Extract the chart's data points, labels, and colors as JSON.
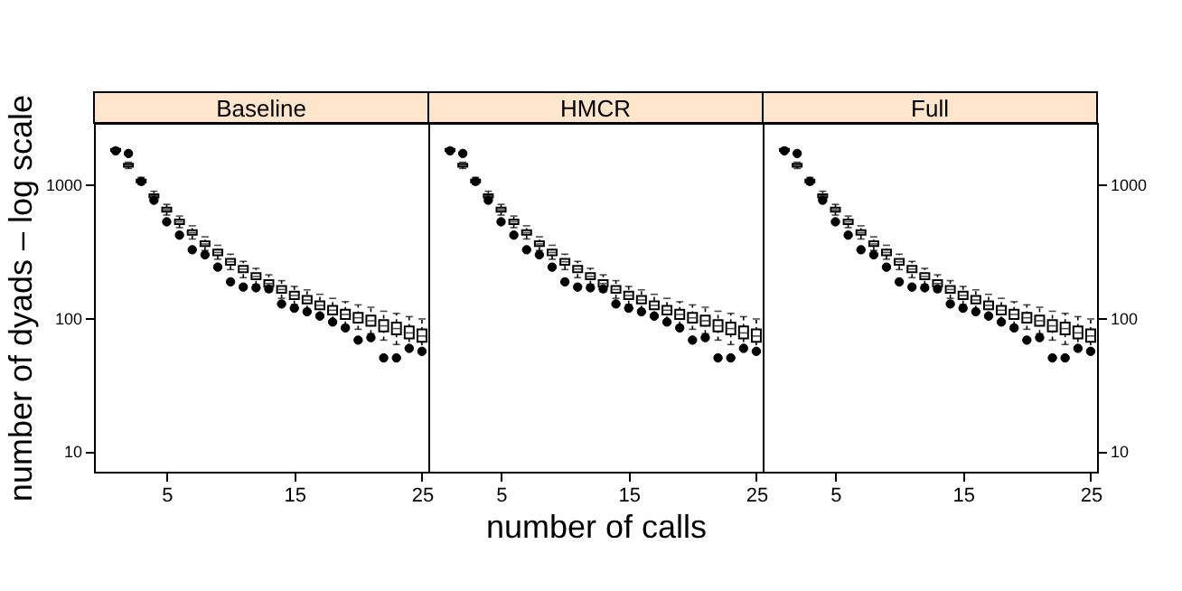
{
  "chart_data": [
    {
      "type": "box",
      "title": "Baseline",
      "ylabel": "number of dyads – log scale",
      "log": true,
      "grid": false,
      "xlim": [
        -0.7,
        25.5
      ],
      "xticks": [
        5,
        15,
        25
      ],
      "ylim": [
        7,
        2900
      ],
      "yticks": [
        10,
        100,
        1000
      ],
      "x": [
        1,
        2,
        3,
        4,
        5,
        6,
        7,
        8,
        9,
        10,
        11,
        12,
        13,
        14,
        15,
        16,
        17,
        18,
        19,
        20,
        21,
        22,
        23,
        24,
        25
      ],
      "series": [
        {
          "type": "box",
          "color": "#000000",
          "boxes": [
            {
              "low": 1750,
              "q1": 1790,
              "median": 1820,
              "q3": 1850,
              "high": 1880
            },
            {
              "low": 1320,
              "q1": 1360,
              "median": 1395,
              "q3": 1430,
              "high": 1470
            },
            {
              "low": 1000,
              "q1": 1040,
              "median": 1065,
              "q3": 1090,
              "high": 1130
            },
            {
              "low": 760,
              "q1": 800,
              "median": 822,
              "q3": 845,
              "high": 890
            },
            {
              "low": 590,
              "q1": 625,
              "median": 647,
              "q3": 670,
              "high": 710
            },
            {
              "low": 475,
              "q1": 505,
              "median": 525,
              "q3": 545,
              "high": 580
            },
            {
              "low": 390,
              "q1": 420,
              "median": 435,
              "q3": 455,
              "high": 490
            },
            {
              "low": 320,
              "q1": 345,
              "median": 358,
              "q3": 375,
              "high": 405
            },
            {
              "low": 275,
              "q1": 295,
              "median": 309,
              "q3": 325,
              "high": 350
            },
            {
              "low": 230,
              "q1": 250,
              "median": 263,
              "q3": 277,
              "high": 300
            },
            {
              "low": 200,
              "q1": 220,
              "median": 232,
              "q3": 245,
              "high": 265
            },
            {
              "low": 178,
              "q1": 195,
              "median": 204,
              "q3": 216,
              "high": 235
            },
            {
              "low": 157,
              "q1": 172,
              "median": 181,
              "q3": 192,
              "high": 210
            },
            {
              "low": 140,
              "q1": 154,
              "median": 163,
              "q3": 173,
              "high": 190
            },
            {
              "low": 126,
              "q1": 138,
              "median": 147,
              "q3": 157,
              "high": 172
            },
            {
              "low": 116,
              "q1": 128,
              "median": 136,
              "q3": 146,
              "high": 162
            },
            {
              "low": 105,
              "q1": 116,
              "median": 124,
              "q3": 133,
              "high": 150
            },
            {
              "low": 96,
              "q1": 106,
              "median": 114,
              "q3": 123,
              "high": 140
            },
            {
              "low": 88,
              "q1": 98,
              "median": 106,
              "q3": 115,
              "high": 132
            },
            {
              "low": 82,
              "q1": 92,
              "median": 100,
              "q3": 109,
              "high": 125
            },
            {
              "low": 76,
              "q1": 87,
              "median": 95,
              "q3": 104,
              "high": 120
            },
            {
              "low": 68,
              "q1": 79,
              "median": 87,
              "q3": 96,
              "high": 112
            },
            {
              "low": 63,
              "q1": 75,
              "median": 83,
              "q3": 92,
              "high": 108
            },
            {
              "low": 58,
              "q1": 70,
              "median": 77,
              "q3": 86,
              "high": 102
            },
            {
              "low": 55,
              "q1": 66,
              "median": 73,
              "q3": 82,
              "high": 98
            }
          ]
        },
        {
          "type": "scatter",
          "color": "#000000",
          "marker": "circle",
          "values": [
            1790,
            1710,
            1055,
            762,
            525,
            417,
            324,
            297,
            240,
            186,
            170,
            168,
            165,
            127,
            118,
            111,
            103,
            93,
            84,
            68,
            71,
            50,
            50,
            59,
            56
          ]
        }
      ]
    },
    {
      "type": "box",
      "title": "HMCR",
      "xlabel": "number of calls",
      "log": true,
      "grid": false,
      "tick_labels": "x",
      "xlim": [
        -0.7,
        25.5
      ],
      "xticks": [
        5,
        15,
        25
      ],
      "ylim": [
        7,
        2900
      ],
      "yticks": [
        10,
        100,
        1000
      ],
      "x": [
        1,
        2,
        3,
        4,
        5,
        6,
        7,
        8,
        9,
        10,
        11,
        12,
        13,
        14,
        15,
        16,
        17,
        18,
        19,
        20,
        21,
        22,
        23,
        24,
        25
      ],
      "series": [
        {
          "type": "box",
          "color": "#000000",
          "boxes": [
            {
              "low": 1760,
              "q1": 1790,
              "median": 1820,
              "q3": 1850,
              "high": 1880
            },
            {
              "low": 1320,
              "q1": 1360,
              "median": 1395,
              "q3": 1430,
              "high": 1470
            },
            {
              "low": 1000,
              "q1": 1040,
              "median": 1065,
              "q3": 1090,
              "high": 1130
            },
            {
              "low": 760,
              "q1": 800,
              "median": 822,
              "q3": 845,
              "high": 890
            },
            {
              "low": 590,
              "q1": 625,
              "median": 647,
              "q3": 670,
              "high": 710
            },
            {
              "low": 475,
              "q1": 505,
              "median": 525,
              "q3": 545,
              "high": 580
            },
            {
              "low": 390,
              "q1": 420,
              "median": 435,
              "q3": 455,
              "high": 490
            },
            {
              "low": 320,
              "q1": 345,
              "median": 358,
              "q3": 375,
              "high": 405
            },
            {
              "low": 275,
              "q1": 295,
              "median": 309,
              "q3": 325,
              "high": 350
            },
            {
              "low": 230,
              "q1": 250,
              "median": 263,
              "q3": 277,
              "high": 300
            },
            {
              "low": 200,
              "q1": 220,
              "median": 232,
              "q3": 245,
              "high": 265
            },
            {
              "low": 178,
              "q1": 195,
              "median": 204,
              "q3": 216,
              "high": 235
            },
            {
              "low": 157,
              "q1": 172,
              "median": 181,
              "q3": 192,
              "high": 210
            },
            {
              "low": 140,
              "q1": 154,
              "median": 163,
              "q3": 173,
              "high": 190
            },
            {
              "low": 126,
              "q1": 138,
              "median": 147,
              "q3": 157,
              "high": 172
            },
            {
              "low": 116,
              "q1": 128,
              "median": 136,
              "q3": 146,
              "high": 162
            },
            {
              "low": 105,
              "q1": 116,
              "median": 124,
              "q3": 133,
              "high": 150
            },
            {
              "low": 96,
              "q1": 106,
              "median": 114,
              "q3": 123,
              "high": 140
            },
            {
              "low": 88,
              "q1": 98,
              "median": 106,
              "q3": 115,
              "high": 132
            },
            {
              "low": 82,
              "q1": 92,
              "median": 100,
              "q3": 109,
              "high": 125
            },
            {
              "low": 76,
              "q1": 87,
              "median": 95,
              "q3": 104,
              "high": 120
            },
            {
              "low": 68,
              "q1": 79,
              "median": 87,
              "q3": 96,
              "high": 112
            },
            {
              "low": 63,
              "q1": 75,
              "median": 83,
              "q3": 92,
              "high": 108
            },
            {
              "low": 58,
              "q1": 70,
              "median": 77,
              "q3": 86,
              "high": 102
            },
            {
              "low": 55,
              "q1": 66,
              "median": 73,
              "q3": 82,
              "high": 98
            }
          ]
        },
        {
          "type": "scatter",
          "color": "#000000",
          "marker": "circle",
          "values": [
            1790,
            1710,
            1055,
            762,
            525,
            417,
            324,
            297,
            240,
            186,
            170,
            168,
            165,
            127,
            118,
            111,
            103,
            93,
            84,
            68,
            71,
            50,
            50,
            59,
            56
          ]
        }
      ]
    },
    {
      "type": "box",
      "title": "Full",
      "log": true,
      "grid": false,
      "xlim": [
        -0.7,
        25.5
      ],
      "xticks": [
        5,
        15,
        25
      ],
      "ylim": [
        7,
        2900
      ],
      "yticks": [
        10,
        100,
        1000
      ],
      "x": [
        1,
        2,
        3,
        4,
        5,
        6,
        7,
        8,
        9,
        10,
        11,
        12,
        13,
        14,
        15,
        16,
        17,
        18,
        19,
        20,
        21,
        22,
        23,
        24,
        25
      ],
      "series": [
        {
          "type": "box",
          "color": "#000000",
          "boxes": [
            {
              "low": 1760,
              "q1": 1790,
              "median": 1820,
              "q3": 1850,
              "high": 1880
            },
            {
              "low": 1320,
              "q1": 1360,
              "median": 1395,
              "q3": 1430,
              "high": 1470
            },
            {
              "low": 1000,
              "q1": 1040,
              "median": 1065,
              "q3": 1090,
              "high": 1130
            },
            {
              "low": 760,
              "q1": 800,
              "median": 822,
              "q3": 845,
              "high": 890
            },
            {
              "low": 590,
              "q1": 625,
              "median": 647,
              "q3": 670,
              "high": 710
            },
            {
              "low": 475,
              "q1": 505,
              "median": 525,
              "q3": 545,
              "high": 580
            },
            {
              "low": 390,
              "q1": 420,
              "median": 435,
              "q3": 455,
              "high": 490
            },
            {
              "low": 320,
              "q1": 345,
              "median": 358,
              "q3": 375,
              "high": 405
            },
            {
              "low": 275,
              "q1": 295,
              "median": 309,
              "q3": 325,
              "high": 350
            },
            {
              "low": 230,
              "q1": 250,
              "median": 263,
              "q3": 277,
              "high": 300
            },
            {
              "low": 200,
              "q1": 220,
              "median": 232,
              "q3": 245,
              "high": 265
            },
            {
              "low": 178,
              "q1": 195,
              "median": 204,
              "q3": 216,
              "high": 235
            },
            {
              "low": 157,
              "q1": 172,
              "median": 181,
              "q3": 192,
              "high": 210
            },
            {
              "low": 140,
              "q1": 154,
              "median": 163,
              "q3": 173,
              "high": 190
            },
            {
              "low": 126,
              "q1": 138,
              "median": 147,
              "q3": 157,
              "high": 172
            },
            {
              "low": 116,
              "q1": 128,
              "median": 136,
              "q3": 146,
              "high": 162
            },
            {
              "low": 105,
              "q1": 116,
              "median": 124,
              "q3": 133,
              "high": 150
            },
            {
              "low": 96,
              "q1": 106,
              "median": 114,
              "q3": 123,
              "high": 140
            },
            {
              "low": 88,
              "q1": 98,
              "median": 106,
              "q3": 115,
              "high": 132
            },
            {
              "low": 82,
              "q1": 92,
              "median": 100,
              "q3": 109,
              "high": 125
            },
            {
              "low": 76,
              "q1": 87,
              "median": 95,
              "q3": 104,
              "high": 120
            },
            {
              "low": 68,
              "q1": 79,
              "median": 87,
              "q3": 96,
              "high": 112
            },
            {
              "low": 63,
              "q1": 75,
              "median": 83,
              "q3": 92,
              "high": 108
            },
            {
              "low": 58,
              "q1": 70,
              "median": 77,
              "q3": 86,
              "high": 102
            },
            {
              "low": 55,
              "q1": 66,
              "median": 73,
              "q3": 82,
              "high": 98
            }
          ]
        },
        {
          "type": "scatter",
          "color": "#000000",
          "marker": "circle",
          "values": [
            1790,
            1710,
            1055,
            762,
            525,
            417,
            324,
            297,
            240,
            186,
            170,
            168,
            165,
            127,
            118,
            111,
            103,
            93,
            84,
            68,
            71,
            50,
            50,
            59,
            56
          ]
        }
      ]
    }
  ]
}
